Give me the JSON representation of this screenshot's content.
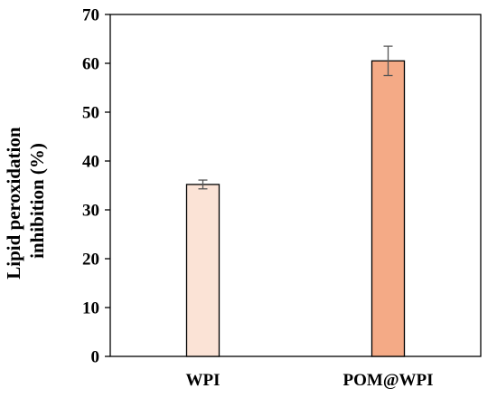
{
  "chart_data": {
    "type": "bar",
    "title": "",
    "xlabel": "",
    "ylabel_lines": [
      "Lipid peroxidation",
      "inhibition (%)"
    ],
    "categories": [
      "WPI",
      "POM@WPI"
    ],
    "values": [
      35.2,
      60.5
    ],
    "errors": [
      0.9,
      3.0
    ],
    "bar_colors": [
      "#fbe3d6",
      "#f4aa86"
    ],
    "bar_edge_color": "#000000",
    "ylim": [
      0,
      70
    ],
    "yticks": [
      0,
      10,
      20,
      30,
      40,
      50,
      60,
      70
    ],
    "grid": false,
    "legend": "none"
  }
}
